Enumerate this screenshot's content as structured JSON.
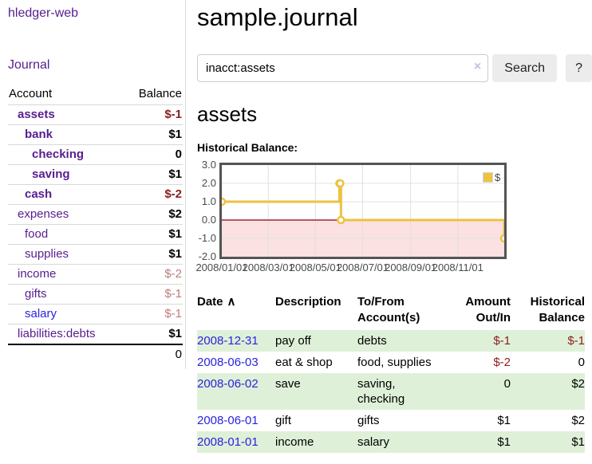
{
  "sidebar": {
    "brand": "hledger-web",
    "journal_link": "Journal",
    "table": {
      "account_header": "Account",
      "balance_header": "Balance",
      "rows": [
        {
          "name": "assets",
          "balance": "$-1",
          "level": 1,
          "bold": true,
          "negative": true,
          "blue": false
        },
        {
          "name": "bank",
          "balance": "$1",
          "level": 2,
          "bold": true,
          "negative": false,
          "blue": false
        },
        {
          "name": "checking",
          "balance": "0",
          "level": 3,
          "bold": true,
          "negative": false,
          "blue": false
        },
        {
          "name": "saving",
          "balance": "$1",
          "level": 3,
          "bold": true,
          "negative": false,
          "blue": false
        },
        {
          "name": "cash",
          "balance": "$-2",
          "level": 2,
          "bold": true,
          "negative": true,
          "blue": false
        },
        {
          "name": "expenses",
          "balance": "$2",
          "level": 1,
          "bold": false,
          "negative": false,
          "blue": false
        },
        {
          "name": "food",
          "balance": "$1",
          "level": 2,
          "bold": false,
          "negative": false,
          "blue": false
        },
        {
          "name": "supplies",
          "balance": "$1",
          "level": 2,
          "bold": false,
          "negative": false,
          "blue": false
        },
        {
          "name": "income",
          "balance": "$-2",
          "level": 1,
          "bold": false,
          "negative": true,
          "blue": false
        },
        {
          "name": "gifts",
          "balance": "$-1",
          "level": 2,
          "bold": false,
          "negative": true,
          "blue": false
        },
        {
          "name": "salary",
          "balance": "$-1",
          "level": 2,
          "bold": false,
          "negative": true,
          "blue": true
        },
        {
          "name": "liabilities:debts",
          "balance": "$1",
          "level": 1,
          "bold": false,
          "negative": false,
          "blue": false
        }
      ],
      "total": "0"
    }
  },
  "header": {
    "title": "sample.journal"
  },
  "search": {
    "query": "inacct:assets",
    "clear_icon": "×",
    "button_label": "Search",
    "help_label": "?"
  },
  "account_page": {
    "heading": "assets",
    "chart_title": "Historical Balance:"
  },
  "chart_data": {
    "type": "line",
    "step": true,
    "title": "Historical Balance:",
    "series": [
      {
        "name": "$",
        "color": "#edc240",
        "points": [
          [
            "2008-01-01",
            1
          ],
          [
            "2008-06-01",
            2
          ],
          [
            "2008-06-02",
            2
          ],
          [
            "2008-06-03",
            0
          ],
          [
            "2008-12-31",
            -1
          ]
        ]
      }
    ],
    "x_ticks": [
      "2008/01/01",
      "2008/03/01",
      "2008/05/01",
      "2008/07/01",
      "2008/09/01",
      "2008/11/01"
    ],
    "y_ticks": [
      3.0,
      2.0,
      1.0,
      0.0,
      -1.0,
      -2.0
    ],
    "x_range": [
      "2008-01-01",
      "2008-12-31"
    ],
    "ylim": [
      -2,
      3
    ],
    "legend": "$",
    "legend_position": "top-right",
    "grid": true,
    "colors": {
      "line": "#edc240",
      "marker_fill": "#ffffff",
      "negative_region": "#fbe1e1",
      "zero_line": "#8b0000",
      "gridline": "#e0e0e0",
      "border": "#545454",
      "tick_label": "#4a4a4a"
    }
  },
  "register": {
    "sort_asc_icon": "∧",
    "headers": [
      {
        "line1": "Date",
        "line2": "",
        "align": "left",
        "sorted": true
      },
      {
        "line1": "Description",
        "line2": "",
        "align": "left",
        "sorted": false
      },
      {
        "line1": "To/From",
        "line2": "Account(s)",
        "align": "left",
        "sorted": false
      },
      {
        "line1": "Amount",
        "line2": "Out/In",
        "align": "right",
        "sorted": false
      },
      {
        "line1": "Historical",
        "line2": "Balance",
        "align": "right",
        "sorted": false
      }
    ],
    "rows": [
      {
        "date": "2008-12-31",
        "description": "pay off",
        "accounts": "debts",
        "amount": "$-1",
        "amount_negative": true,
        "balance": "$-1",
        "balance_negative": true
      },
      {
        "date": "2008-06-03",
        "description": "eat & shop",
        "accounts": "food, supplies",
        "amount": "$-2",
        "amount_negative": true,
        "balance": "0",
        "balance_negative": false
      },
      {
        "date": "2008-06-02",
        "description": "save",
        "accounts": "saving,\nchecking",
        "amount": "0",
        "amount_negative": false,
        "balance": "$2",
        "balance_negative": false
      },
      {
        "date": "2008-06-01",
        "description": "gift",
        "accounts": "gifts",
        "amount": "$1",
        "amount_negative": false,
        "balance": "$2",
        "balance_negative": false
      },
      {
        "date": "2008-01-01",
        "description": "income",
        "accounts": "salary",
        "amount": "$1",
        "amount_negative": false,
        "balance": "$1",
        "balance_negative": false
      }
    ]
  }
}
